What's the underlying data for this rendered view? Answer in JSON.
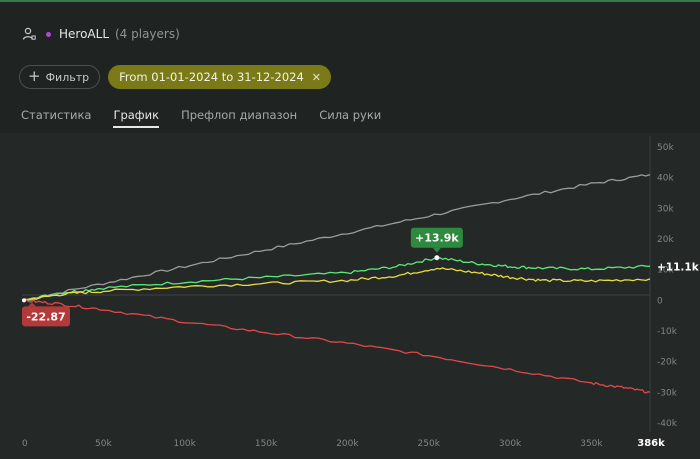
{
  "header": {
    "icon": "user-settings-icon",
    "player_name": "HeroALL",
    "players_count": "(4 players)"
  },
  "filters": {
    "filter_label": "Фильтр",
    "date_range": "From 01-01-2024 to 31-12-2024"
  },
  "tabs": [
    {
      "label": "Статистика",
      "active": false
    },
    {
      "label": "График",
      "active": true
    },
    {
      "label": "Префлоп диапазон",
      "active": false
    },
    {
      "label": "Сила руки",
      "active": false
    }
  ],
  "colors": {
    "background": "#1f2422",
    "gray_line": "#9a9d9b",
    "green_line": "#5ce878",
    "yellow_line": "#e8dc45",
    "red_line": "#e04848",
    "date_chip": "#7b7a19",
    "green_badge": "#2e8a3e",
    "red_badge": "#b23a3a"
  },
  "chart_data": {
    "type": "line",
    "x_ticks": [
      "0",
      "50k",
      "100k",
      "150k",
      "200k",
      "250k",
      "300k",
      "350k"
    ],
    "x_max_label": "386k",
    "y_ticks": [
      "50k",
      "40k",
      "30k",
      "20k",
      "10k",
      "0",
      "-10k",
      "-20k",
      "-30k",
      "-40k"
    ],
    "xlim": [
      0,
      386000
    ],
    "ylim": [
      -40000,
      50000
    ],
    "grid": "horizontal zero line only",
    "series": [
      {
        "color": "#9a9d9b",
        "x": [
          0,
          50000,
          100000,
          150000,
          200000,
          250000,
          300000,
          350000,
          386000
        ],
        "y": [
          0,
          5500,
          11000,
          16500,
          22000,
          27500,
          33000,
          38000,
          41000
        ]
      },
      {
        "color": "#5ce878",
        "x": [
          0,
          25000,
          50000,
          100000,
          150000,
          200000,
          230000,
          255000,
          280000,
          300000,
          320000,
          350000,
          386000
        ],
        "y": [
          0,
          2500,
          4000,
          6000,
          7500,
          9000,
          11000,
          13900,
          12000,
          11000,
          10500,
          10200,
          11100
        ]
      },
      {
        "color": "#e8dc45",
        "x": [
          0,
          25000,
          50000,
          100000,
          150000,
          200000,
          230000,
          255000,
          280000,
          300000,
          320000,
          350000,
          386000
        ],
        "y": [
          0,
          2000,
          3000,
          4500,
          5500,
          6500,
          8000,
          10500,
          9000,
          7500,
          6500,
          6300,
          7000
        ]
      },
      {
        "color": "#e04848",
        "x": [
          0,
          20000,
          50000,
          100000,
          150000,
          200000,
          250000,
          300000,
          350000,
          370000,
          386000
        ],
        "y": [
          0,
          -1000,
          -3000,
          -7000,
          -10500,
          -14000,
          -18000,
          -22500,
          -27000,
          -28500,
          -30000
        ]
      }
    ],
    "annotations": {
      "peak_label": "+13.9k",
      "peak_x": 255000,
      "peak_y": 13900,
      "end_label": "+11.1k",
      "end_y": 11100,
      "start_label": "-22.87",
      "start_x": 0,
      "start_y": 0
    }
  }
}
